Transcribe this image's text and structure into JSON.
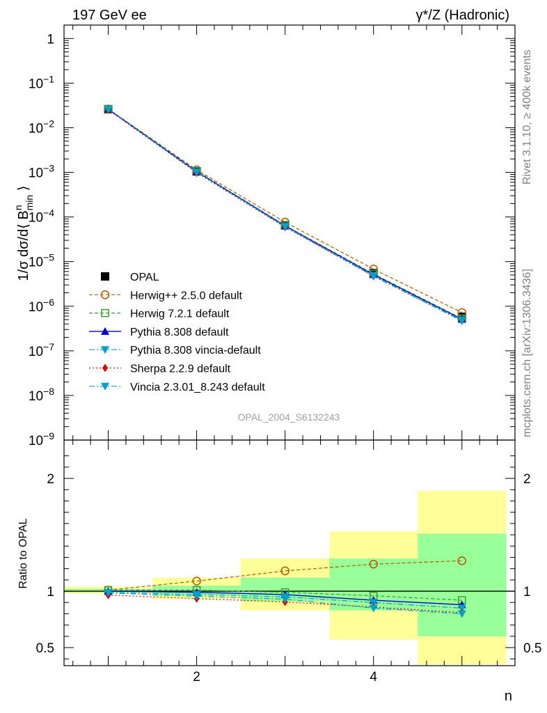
{
  "header": {
    "left": "197 GeV ee",
    "right": "γ*/Z (Hadronic)"
  },
  "side_labels": {
    "rivet": "Rivet 3.1.10, ≥ 400k events",
    "mcplots": "mcplots.cern.ch [arXiv:1306.3436]"
  },
  "watermark": "OPAL_2004_S6132243",
  "chart_data": [
    {
      "type": "line",
      "name": "main",
      "yscale": "log",
      "xlim": [
        0.5,
        5.6
      ],
      "ylim": [
        1e-09,
        2
      ],
      "ylabel": "1/σ dσ/d⟨ B^n_min ⟩",
      "ylabel_parts": {
        "prefix": "1/σ dσ/d⟨ B",
        "sup": "n",
        "sub": "min",
        "suffix": " ⟩"
      },
      "yticks": [
        {
          "value": 1,
          "base": "1",
          "exp": ""
        },
        {
          "value": 0.1,
          "base": "10",
          "exp": "−1"
        },
        {
          "value": 0.01,
          "base": "10",
          "exp": "−2"
        },
        {
          "value": 0.001,
          "base": "10",
          "exp": "−3"
        },
        {
          "value": 0.0001,
          "base": "10",
          "exp": "−4"
        },
        {
          "value": 1e-05,
          "base": "10",
          "exp": "−5"
        },
        {
          "value": 1e-06,
          "base": "10",
          "exp": "−6"
        },
        {
          "value": 1e-07,
          "base": "10",
          "exp": "−7"
        },
        {
          "value": 1e-08,
          "base": "10",
          "exp": "−8"
        },
        {
          "value": 1e-09,
          "base": "10",
          "exp": "−9"
        }
      ],
      "x": [
        1,
        2,
        3,
        4,
        5
      ],
      "legend_position": "lower-left",
      "series": [
        {
          "name": "OPAL",
          "color": "#000000",
          "marker": "square-filled",
          "line": "none",
          "values": [
            0.026,
            0.00105,
            6.5e-05,
            5.5e-06,
            5.8e-07
          ]
        },
        {
          "name": "Herwig++ 2.5.0 default",
          "color": "#b35900",
          "marker": "circle-open",
          "line": "dashed",
          "values": [
            0.0262,
            0.00114,
            7.65e-05,
            6.8e-06,
            7.2e-07
          ]
        },
        {
          "name": "Herwig 7.2.1 default",
          "color": "#33a02c",
          "marker": "square-open",
          "line": "dashed",
          "values": [
            0.0262,
            0.00107,
            6.45e-05,
            5.3e-06,
            5.3e-07
          ]
        },
        {
          "name": "Pythia 8.308 default",
          "color": "#0000cc",
          "marker": "triangle-up",
          "line": "solid",
          "values": [
            0.0261,
            0.00104,
            6.3e-05,
            5.1e-06,
            5.1e-07
          ]
        },
        {
          "name": "Pythia 8.308 vincia-default",
          "color": "#00a0c8",
          "marker": "triangle-down",
          "line": "dashdot",
          "values": [
            0.0259,
            0.00102,
            6.15e-05,
            4.9e-06,
            4.9e-07
          ]
        },
        {
          "name": "Sherpa 2.2.9 default",
          "color": "#e00000",
          "marker": "diamond",
          "line": "dotted",
          "values": [
            0.0251,
            0.00098,
            5.9e-05,
            4.7e-06,
            4.7e-07
          ]
        },
        {
          "name": "Vincia 2.3.01_8.243 default",
          "color": "#00a0c8",
          "marker": "triangle-down",
          "line": "dashdot",
          "values": [
            0.0257,
            0.00101,
            6.05e-05,
            4.7e-06,
            4.7e-07
          ]
        }
      ]
    },
    {
      "type": "line",
      "name": "ratio",
      "xlim": [
        0.5,
        5.6
      ],
      "ylim": [
        0.34,
        2.34
      ],
      "xlabel": "n",
      "ylabel": "Ratio to OPAL",
      "xticks": [
        "2",
        "4"
      ],
      "xtick_values": [
        2,
        4
      ],
      "yticks": [
        "0.5",
        "1",
        "2"
      ],
      "ytick_values": [
        0.5,
        1,
        2
      ],
      "bands": {
        "x_lo": [
          0.5,
          1.5,
          2.5,
          3.5,
          4.5
        ],
        "x_hi": [
          1.5,
          2.5,
          3.5,
          4.5,
          5.5
        ],
        "yellow_lo": [
          0.98,
          0.93,
          0.83,
          0.57,
          0.35
        ],
        "yellow_hi": [
          1.04,
          1.12,
          1.29,
          1.53,
          1.89
        ],
        "green_lo": [
          0.99,
          0.96,
          0.91,
          0.83,
          0.6
        ],
        "green_hi": [
          1.02,
          1.05,
          1.12,
          1.29,
          1.51
        ]
      },
      "series": [
        {
          "name": "Herwig++ 2.5.0 default",
          "values": [
            1.01,
            1.09,
            1.18,
            1.24,
            1.27
          ]
        },
        {
          "name": "Herwig 7.2.1 default",
          "values": [
            1.01,
            1.01,
            0.99,
            0.96,
            0.92
          ]
        },
        {
          "name": "Pythia 8.308 default",
          "values": [
            1.0,
            0.99,
            0.97,
            0.92,
            0.88
          ]
        },
        {
          "name": "Pythia 8.308 vincia-default",
          "values": [
            0.99,
            0.97,
            0.95,
            0.9,
            0.85
          ]
        },
        {
          "name": "Sherpa 2.2.9 default",
          "values": [
            0.965,
            0.935,
            0.905,
            0.86,
            0.81
          ]
        },
        {
          "name": "Vincia 2.3.01_8.243 default",
          "values": [
            0.985,
            0.955,
            0.93,
            0.85,
            0.8
          ]
        }
      ]
    }
  ]
}
